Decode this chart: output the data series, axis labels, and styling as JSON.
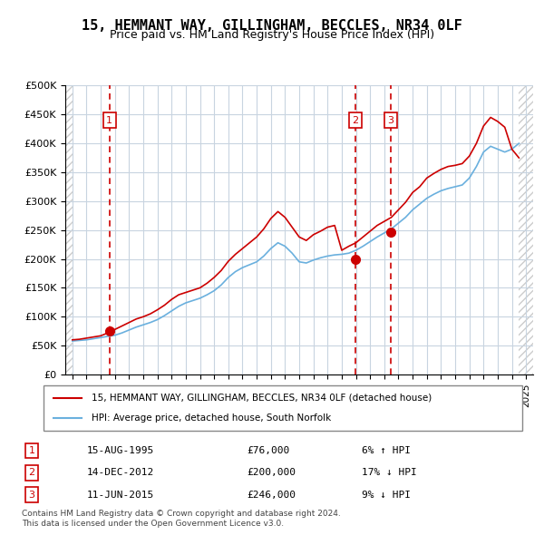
{
  "title": "15, HEMMANT WAY, GILLINGHAM, BECCLES, NR34 0LF",
  "subtitle": "Price paid vs. HM Land Registry's House Price Index (HPI)",
  "legend_line1": "15, HEMMANT WAY, GILLINGHAM, BECCLES, NR34 0LF (detached house)",
  "legend_line2": "HPI: Average price, detached house, South Norfolk",
  "footer1": "Contains HM Land Registry data © Crown copyright and database right 2024.",
  "footer2": "This data is licensed under the Open Government Licence v3.0.",
  "transactions": [
    {
      "label": "1",
      "date": "15-AUG-1995",
      "price": 76000,
      "pct": "6%",
      "dir": "↑",
      "x": 1995.62
    },
    {
      "label": "2",
      "date": "14-DEC-2012",
      "price": 200000,
      "pct": "17%",
      "dir": "↓",
      "x": 2012.96
    },
    {
      "label": "3",
      "date": "11-JUN-2015",
      "price": 246000,
      "pct": "9%",
      "dir": "↓",
      "x": 2015.44
    }
  ],
  "hpi_color": "#6ab0de",
  "price_color": "#cc0000",
  "vline_color": "#cc0000",
  "dot_color": "#cc0000",
  "box_color": "#cc0000",
  "bg_hatch_color": "#d0d0d0",
  "grid_color": "#c8d4e0",
  "ylim": [
    0,
    500000
  ],
  "yticks": [
    0,
    50000,
    100000,
    150000,
    200000,
    250000,
    300000,
    350000,
    400000,
    450000,
    500000
  ],
  "xlim_start": 1992.5,
  "xlim_end": 2025.5,
  "xticks": [
    1993,
    1994,
    1995,
    1996,
    1997,
    1998,
    1999,
    2000,
    2001,
    2002,
    2003,
    2004,
    2005,
    2006,
    2007,
    2008,
    2009,
    2010,
    2011,
    2012,
    2013,
    2014,
    2015,
    2016,
    2017,
    2018,
    2019,
    2020,
    2021,
    2022,
    2023,
    2024,
    2025
  ],
  "hpi_x": [
    1993,
    1993.5,
    1994,
    1994.5,
    1995,
    1995.5,
    1996,
    1996.5,
    1997,
    1997.5,
    1998,
    1998.5,
    1999,
    1999.5,
    2000,
    2000.5,
    2001,
    2001.5,
    2002,
    2002.5,
    2003,
    2003.5,
    2004,
    2004.5,
    2005,
    2005.5,
    2006,
    2006.5,
    2007,
    2007.5,
    2008,
    2008.5,
    2009,
    2009.5,
    2010,
    2010.5,
    2011,
    2011.5,
    2012,
    2012.5,
    2013,
    2013.5,
    2014,
    2014.5,
    2015,
    2015.5,
    2016,
    2016.5,
    2017,
    2017.5,
    2018,
    2018.5,
    2019,
    2019.5,
    2020,
    2020.5,
    2021,
    2021.5,
    2022,
    2022.5,
    2023,
    2023.5,
    2024,
    2024.5
  ],
  "hpi_y": [
    58000,
    59000,
    60000,
    62000,
    64000,
    66000,
    68000,
    72000,
    77000,
    82000,
    86000,
    90000,
    95000,
    102000,
    110000,
    118000,
    124000,
    128000,
    132000,
    138000,
    145000,
    155000,
    168000,
    178000,
    185000,
    190000,
    195000,
    205000,
    218000,
    228000,
    222000,
    210000,
    195000,
    193000,
    198000,
    202000,
    205000,
    207000,
    208000,
    210000,
    215000,
    222000,
    230000,
    238000,
    245000,
    252000,
    262000,
    272000,
    285000,
    295000,
    305000,
    312000,
    318000,
    322000,
    325000,
    328000,
    340000,
    360000,
    385000,
    395000,
    390000,
    385000,
    390000,
    400000
  ],
  "price_x": [
    1993,
    1993.5,
    1994,
    1994.5,
    1995,
    1995.5,
    1996,
    1996.5,
    1997,
    1997.5,
    1998,
    1998.5,
    1999,
    1999.5,
    2000,
    2000.5,
    2001,
    2001.5,
    2002,
    2002.5,
    2003,
    2003.5,
    2004,
    2004.5,
    2005,
    2005.5,
    2006,
    2006.5,
    2007,
    2007.5,
    2008,
    2008.5,
    2009,
    2009.5,
    2010,
    2010.5,
    2011,
    2011.5,
    2012,
    2012.5,
    2013,
    2013.5,
    2014,
    2014.5,
    2015,
    2015.5,
    2016,
    2016.5,
    2017,
    2017.5,
    2018,
    2018.5,
    2019,
    2019.5,
    2020,
    2020.5,
    2021,
    2021.5,
    2022,
    2022.5,
    2023,
    2023.5,
    2024,
    2024.5
  ],
  "price_y": [
    60000,
    61000,
    63000,
    65000,
    67000,
    72000,
    78000,
    84000,
    90000,
    96000,
    100000,
    105000,
    112000,
    120000,
    130000,
    138000,
    142000,
    146000,
    150000,
    158000,
    168000,
    180000,
    196000,
    208000,
    218000,
    228000,
    238000,
    252000,
    270000,
    282000,
    272000,
    255000,
    238000,
    232000,
    242000,
    248000,
    255000,
    258000,
    215000,
    222000,
    228000,
    238000,
    248000,
    258000,
    265000,
    272000,
    285000,
    298000,
    315000,
    325000,
    340000,
    348000,
    355000,
    360000,
    362000,
    365000,
    378000,
    400000,
    430000,
    445000,
    438000,
    428000,
    390000,
    375000
  ]
}
